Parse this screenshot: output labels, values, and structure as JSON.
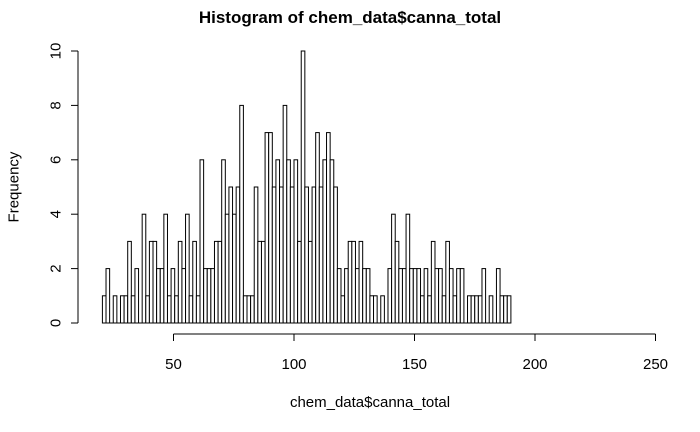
{
  "chart_data": {
    "type": "bar",
    "title": "Histogram of chem_data$canna_total",
    "xlabel": "chem_data$canna_total",
    "ylabel": "Frequency",
    "bin_width": 1.5,
    "x_start": 20.5,
    "xlim": [
      20,
      250
    ],
    "ylim": [
      0,
      10
    ],
    "x_ticks": [
      50,
      100,
      150,
      200,
      250
    ],
    "y_ticks": [
      0,
      2,
      4,
      6,
      8,
      10
    ],
    "grid": false,
    "fill": "#ffffff",
    "stroke": "#000000",
    "values": [
      1,
      2,
      0,
      1,
      0,
      1,
      1,
      3,
      1,
      2,
      0,
      4,
      1,
      3,
      3,
      2,
      2,
      4,
      1,
      2,
      1,
      3,
      2,
      4,
      1,
      3,
      1,
      6,
      2,
      2,
      2,
      3,
      3,
      6,
      4,
      5,
      4,
      5,
      8,
      1,
      1,
      1,
      5,
      3,
      3,
      7,
      7,
      5,
      6,
      5,
      8,
      6,
      5,
      6,
      3,
      10,
      5,
      3,
      5,
      7,
      5,
      6,
      7,
      6,
      5,
      2,
      1,
      2,
      3,
      3,
      2,
      3,
      2,
      2,
      1,
      1,
      0,
      1,
      0,
      2,
      4,
      3,
      2,
      2,
      4,
      2,
      2,
      2,
      1,
      2,
      1,
      3,
      2,
      2,
      1,
      3,
      2,
      1,
      2,
      2,
      0,
      1,
      1,
      1,
      1,
      2,
      0,
      1,
      0,
      2,
      1,
      1,
      1
    ]
  }
}
